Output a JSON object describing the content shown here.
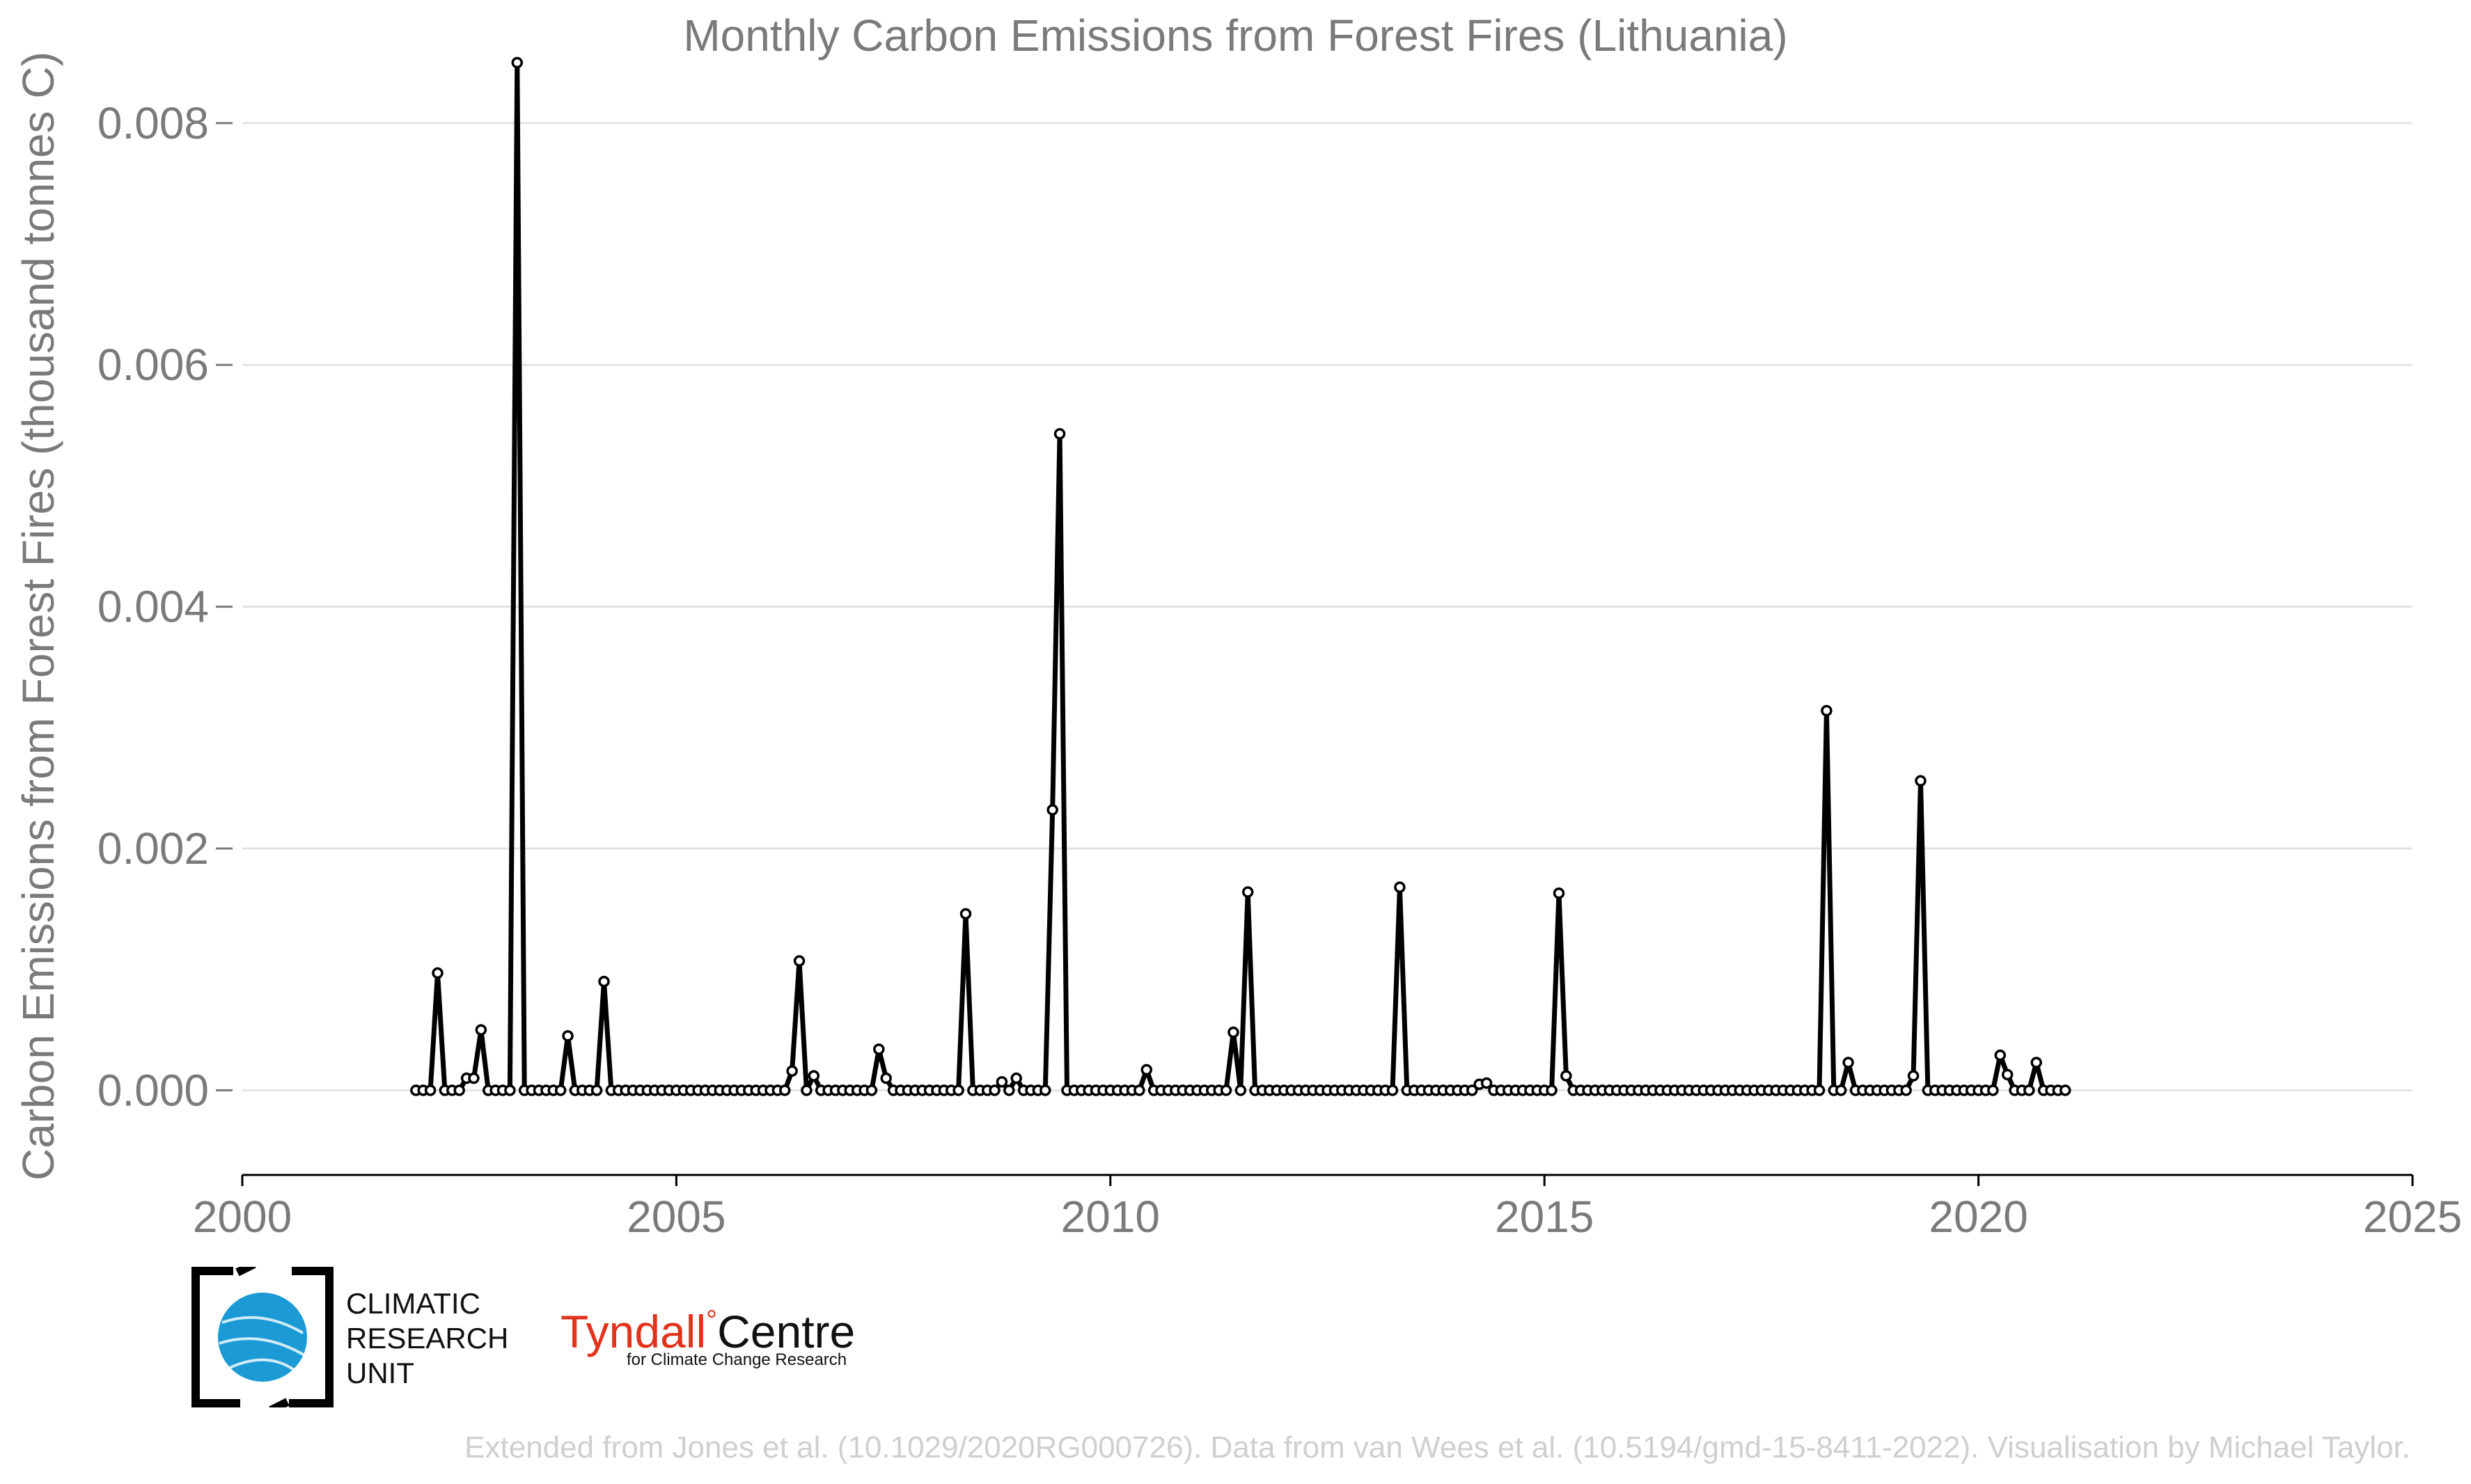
{
  "chart_data": {
    "type": "line",
    "title": "Monthly Carbon Emissions from Forest Fires (Lithuania)",
    "xlabel": "",
    "ylabel": "Carbon Emissions from Forest Fires (thousand tonnes C)",
    "xlim": [
      2000,
      2025
    ],
    "ylim": [
      -0.0007,
      0.0085
    ],
    "x_ticks": [
      "2000",
      "2005",
      "2010",
      "2015",
      "2020",
      "2025"
    ],
    "y_ticks": [
      "0.000",
      "0.002",
      "0.004",
      "0.006",
      "0.008"
    ],
    "grid": "horizontal",
    "line_color": "#000000",
    "marker": "open-circle",
    "series": [
      {
        "start": "2002-01",
        "frequency": "monthly",
        "values": [
          0,
          0,
          0,
          0.00097,
          0,
          0,
          0,
          0.0001,
          0.0001,
          0.0005,
          0,
          0,
          0,
          0,
          0.0085,
          0,
          0,
          0,
          0,
          0,
          0,
          0.00045,
          0,
          0,
          0,
          0,
          0.0009,
          0,
          0,
          0,
          0,
          0,
          0,
          0,
          0,
          0,
          0,
          0,
          0,
          0,
          0,
          0,
          0,
          0,
          0,
          0,
          0,
          0,
          0,
          0,
          0,
          0,
          0.00016,
          0.00107,
          0,
          0.00012,
          0,
          0,
          0,
          0,
          0,
          0,
          0,
          0,
          0.00034,
          0.0001,
          0,
          0,
          0,
          0,
          0,
          0,
          0,
          0,
          0,
          0,
          0.00146,
          0,
          0,
          0,
          0,
          7e-05,
          0,
          0.0001,
          0,
          0,
          0,
          0,
          0.00232,
          0.00543,
          0,
          0,
          0,
          0,
          0,
          0,
          0,
          0,
          0,
          0,
          0,
          0.00017,
          0,
          0,
          0,
          0,
          0,
          0,
          0,
          0,
          0,
          0,
          0,
          0.00048,
          0,
          0.00164,
          0,
          0,
          0,
          0,
          0,
          0,
          0,
          0,
          0,
          0,
          0,
          0,
          0,
          0,
          0,
          0,
          0,
          0,
          0,
          0,
          0.00168,
          0,
          0,
          0,
          0,
          0,
          0,
          0,
          0,
          0,
          0,
          5e-05,
          6e-05,
          0,
          0,
          0,
          0,
          0,
          0,
          0,
          0,
          0,
          0.00163,
          0.00012,
          0,
          0,
          0,
          0,
          0,
          0,
          0,
          0,
          0,
          0,
          0,
          0,
          0,
          0,
          0,
          0,
          0,
          0,
          0,
          0,
          0,
          0,
          0,
          0,
          0,
          0,
          0,
          0,
          0,
          0,
          0,
          0,
          0,
          0,
          0,
          0.00314,
          0,
          0,
          0.00023,
          0,
          0,
          0,
          0,
          0,
          0,
          0,
          0,
          0.00012,
          0.00256,
          0,
          0,
          0,
          0,
          0,
          0,
          0,
          0,
          0,
          0,
          0.00029,
          0.00013,
          0,
          0,
          0,
          0.00023,
          0,
          0,
          0,
          0
        ]
      }
    ]
  },
  "logos": {
    "cru_lines": [
      "CLIMATIC",
      "RESEARCH",
      "UNIT"
    ],
    "tyndall_name": "Tyndall",
    "tyndall_degree": "°",
    "tyndall_centre": "Centre",
    "tyndall_subtitle": "for Climate Change Research"
  },
  "footer": "Extended from Jones et al. (10.1029/2020RG000726). Data from van Wees et al. (10.5194/gmd-15-8411-2022). Visualisation by Michael Taylor."
}
